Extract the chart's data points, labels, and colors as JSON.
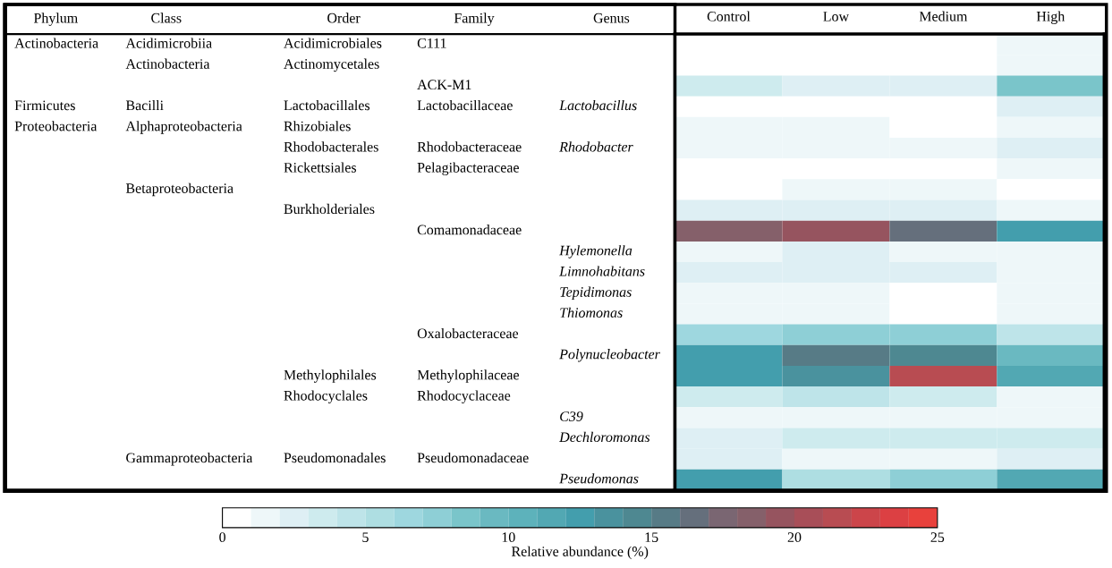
{
  "chart_data": [
    {
      "type": "other",
      "categories": [
        "Phylum",
        "Class",
        "Order",
        "Family",
        "Genus"
      ],
      "cell_labels": [
        [
          "Actinobacteria",
          "Acidimicrobiia",
          "Acidimicrobiales",
          "C111",
          null
        ],
        [
          null,
          "Actinobacteria",
          "Actinomycetales",
          null,
          null
        ],
        [
          null,
          null,
          null,
          "ACK-M1",
          null
        ],
        [
          "Firmicutes",
          "Bacilli",
          "Lactobacillales",
          "Lactobacillaceae",
          "Lactobacillus"
        ],
        [
          "Proteobacteria",
          "Alphaproteobacteria",
          "Rhizobiales",
          null,
          null
        ],
        [
          null,
          null,
          "Rhodobacterales",
          "Rhodobacteraceae",
          "Rhodobacter"
        ],
        [
          null,
          null,
          "Rickettsiales",
          "Pelagibacteraceae",
          null
        ],
        [
          null,
          "Betaproteobacteria",
          null,
          null,
          null
        ],
        [
          null,
          null,
          "Burkholderiales",
          null,
          null
        ],
        [
          null,
          null,
          null,
          "Comamonadaceae",
          null
        ],
        [
          null,
          null,
          null,
          null,
          "Hylemonella"
        ],
        [
          null,
          null,
          null,
          null,
          "Limnohabitans"
        ],
        [
          null,
          null,
          null,
          null,
          "Tepidimonas"
        ],
        [
          null,
          null,
          null,
          null,
          "Thiomonas"
        ],
        [
          null,
          null,
          null,
          "Oxalobacteraceae",
          null
        ],
        [
          null,
          null,
          null,
          null,
          "Polynucleobacter"
        ],
        [
          null,
          null,
          "Methylophilales",
          "Methylophilaceae",
          null
        ],
        [
          null,
          null,
          "Rhodocyclales",
          "Rhodocyclaceae",
          null
        ],
        [
          null,
          null,
          null,
          null,
          "C39"
        ],
        [
          null,
          null,
          null,
          null,
          "Dechloromonas"
        ],
        [
          null,
          "Gammaproteobacteria",
          "Pseudomonadales",
          "Pseudomonadaceae",
          null
        ],
        [
          null,
          null,
          null,
          null,
          "Pseudomonas"
        ]
      ]
    },
    {
      "type": "heatmap",
      "categories": [
        "Control",
        "Low",
        "Medium",
        "High"
      ],
      "y_categories": [
        null,
        null,
        null,
        null,
        null,
        null,
        null,
        null,
        null,
        null,
        null,
        null,
        null,
        null,
        null,
        null,
        null,
        null,
        null,
        null,
        null,
        null
      ],
      "cells": [
        [
          0,
          0,
          0,
          1
        ],
        [
          0,
          0,
          0,
          1
        ],
        [
          3,
          2,
          2,
          8
        ],
        [
          0,
          0,
          0,
          2
        ],
        [
          1,
          1,
          0,
          1
        ],
        [
          1,
          1,
          1,
          2
        ],
        [
          0,
          0,
          0,
          1
        ],
        [
          0,
          1,
          1,
          0
        ],
        [
          2,
          2,
          2,
          1
        ],
        [
          18,
          19,
          16,
          12
        ],
        [
          1,
          2,
          1,
          1
        ],
        [
          2,
          2,
          2,
          1
        ],
        [
          1,
          1,
          0,
          1
        ],
        [
          1,
          1,
          0,
          1
        ],
        [
          6,
          7,
          7,
          4
        ],
        [
          12,
          15,
          14,
          9
        ],
        [
          12,
          13,
          21,
          11
        ],
        [
          3,
          4,
          3,
          1
        ],
        [
          1,
          1,
          1,
          1
        ],
        [
          2,
          3,
          3,
          3
        ],
        [
          2,
          1,
          1,
          2
        ],
        [
          12,
          5,
          7,
          11
        ]
      ],
      "colors": [
        "#ffffff",
        "#eef7f9",
        "#deeff4",
        "#ceebee",
        "#bee4e9",
        "#aedee2",
        "#9ed7df",
        "#8ecfd6",
        "#7ac5ca",
        "#6ab9c1",
        "#5db2bb",
        "#52a8b3",
        "#439ead",
        "#4a929e",
        "#4e8891",
        "#577b86",
        "#656f7c",
        "#7a6672",
        "#85606a",
        "#96545f",
        "#a84e58",
        "#b84c52",
        "#cc454a",
        "#dc4043",
        "#e8413c"
      ],
      "clim": [
        0,
        25
      ],
      "cticks": [
        0,
        5,
        10,
        15,
        20,
        25
      ],
      "clabel": "Relative abundance (%)"
    }
  ]
}
